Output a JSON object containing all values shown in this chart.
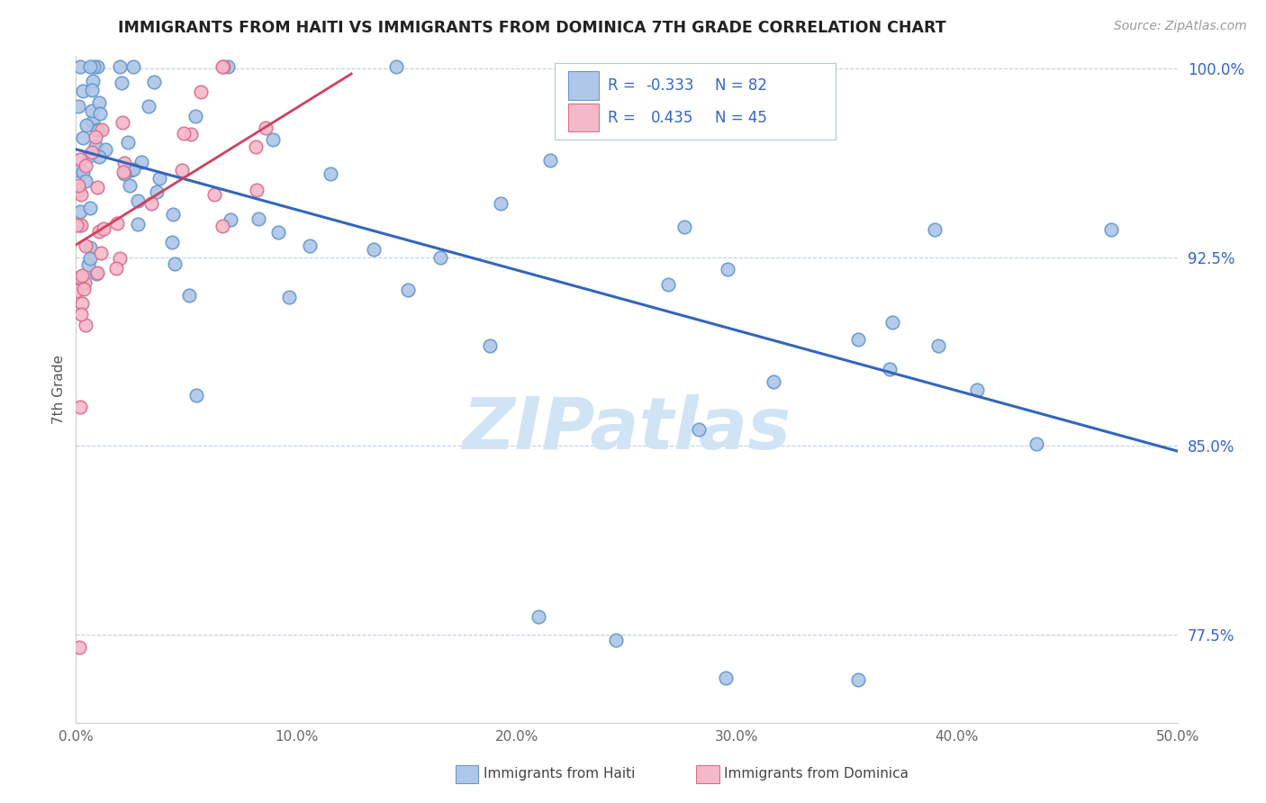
{
  "title": "IMMIGRANTS FROM HAITI VS IMMIGRANTS FROM DOMINICA 7TH GRADE CORRELATION CHART",
  "source": "Source: ZipAtlas.com",
  "ylabel": "7th Grade",
  "xlim": [
    0.0,
    0.5
  ],
  "ylim": [
    0.74,
    1.005
  ],
  "x_ticks": [
    0.0,
    0.1,
    0.2,
    0.3,
    0.4,
    0.5
  ],
  "x_tick_labels": [
    "0.0%",
    "10.0%",
    "20.0%",
    "30.0%",
    "40.0%",
    "50.0%"
  ],
  "y_tick_vals": [
    0.775,
    0.85,
    0.925,
    1.0
  ],
  "y_tick_labels": [
    "77.5%",
    "85.0%",
    "92.5%",
    "100.0%"
  ],
  "legend_bottom": [
    "Immigrants from Haiti",
    "Immigrants from Dominica"
  ],
  "haiti_color": "#aec6e8",
  "haiti_edge": "#6699cc",
  "dominica_color": "#f4b8c8",
  "dominica_edge": "#d97090",
  "haiti_R": -0.333,
  "haiti_N": 82,
  "dominica_R": 0.435,
  "dominica_N": 45,
  "haiti_line_color": "#3366bb",
  "dominica_line_color": "#d04060",
  "legend_text_color": "#3366cc",
  "background_color": "#ffffff",
  "grid_color": "#c0d0e0",
  "watermark": "ZIPatlas",
  "watermark_color": "#d0e4f5"
}
